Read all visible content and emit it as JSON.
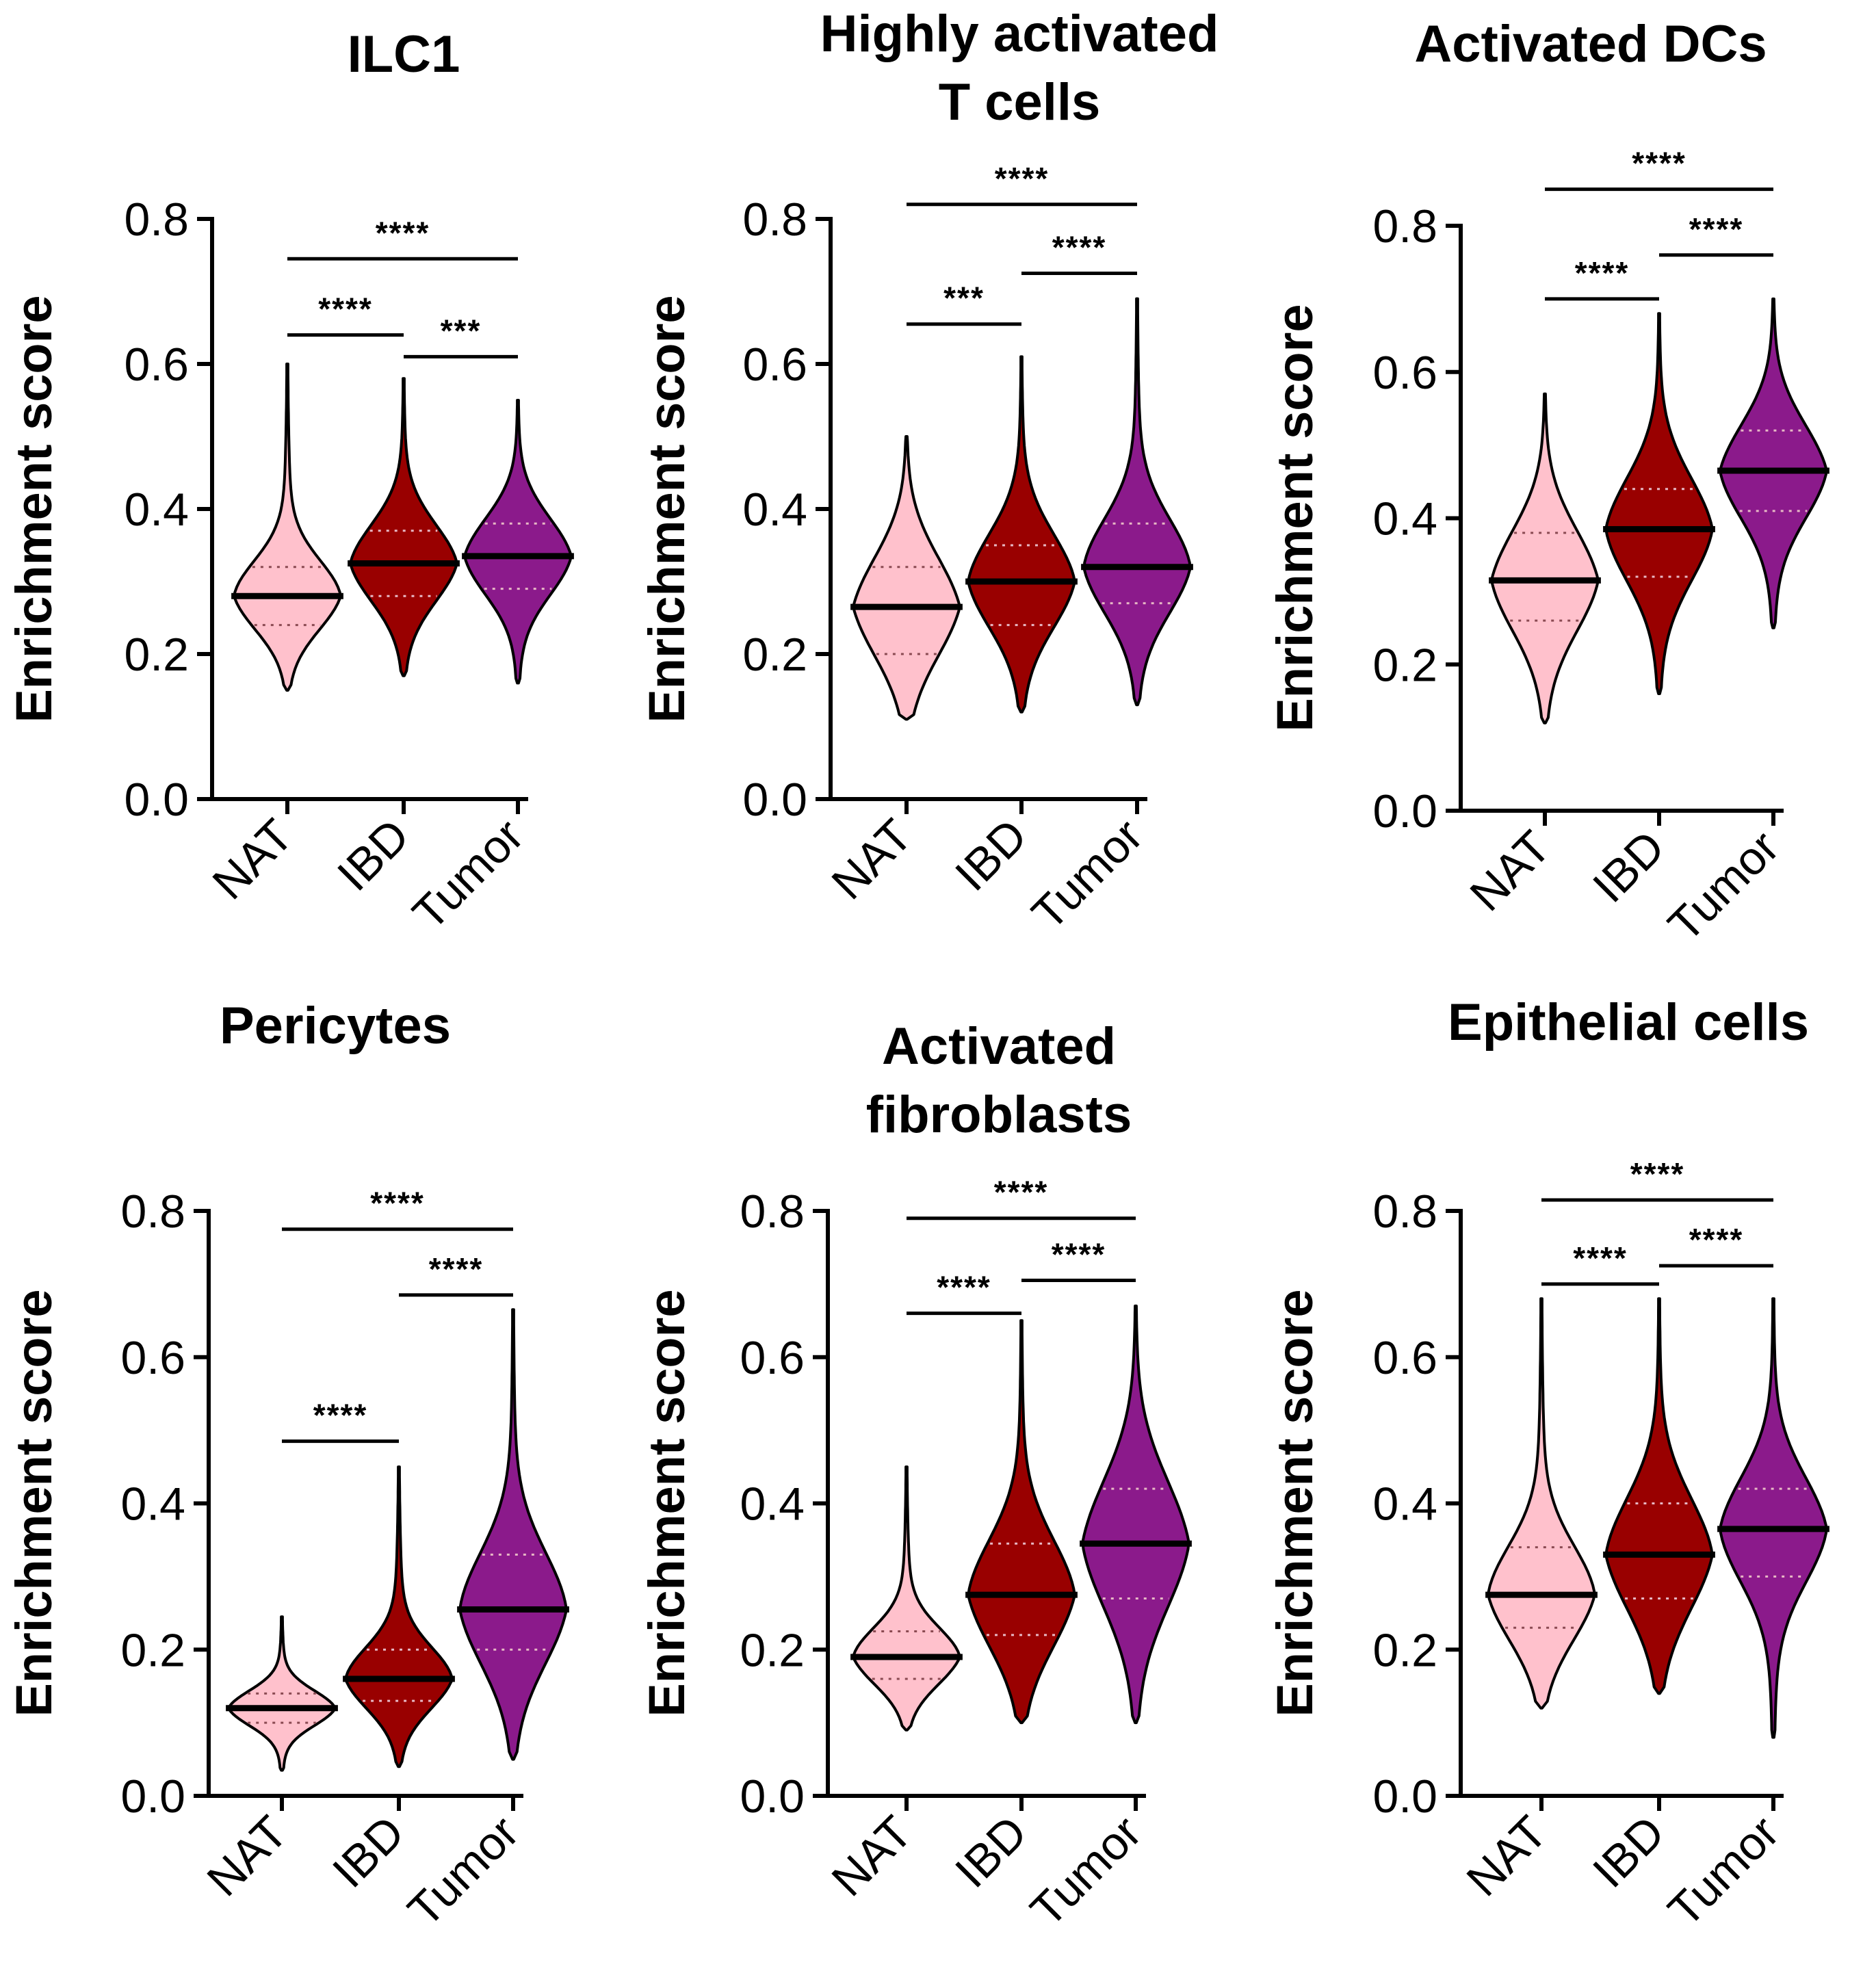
{
  "colors": {
    "NAT": "#ffc1cc",
    "IBD": "#990000",
    "Tumor": "#8b1a8b"
  },
  "chart_data": [
    {
      "type": "violin",
      "title": [
        "ILC1"
      ],
      "ylabel": "Enrichment score",
      "categories": [
        "NAT",
        "IBD",
        "Tumor"
      ],
      "ylim": [
        0,
        0.8
      ],
      "yticks": [
        "0.0",
        "0.2",
        "0.4",
        "0.6",
        "0.8"
      ],
      "series": [
        {
          "name": "NAT",
          "min": 0.15,
          "q1": 0.24,
          "median": 0.28,
          "q3": 0.32,
          "max": 0.6
        },
        {
          "name": "IBD",
          "min": 0.17,
          "q1": 0.28,
          "median": 0.325,
          "q3": 0.37,
          "max": 0.58
        },
        {
          "name": "Tumor",
          "min": 0.16,
          "q1": 0.29,
          "median": 0.335,
          "q3": 0.38,
          "max": 0.55
        }
      ],
      "comparisons": [
        {
          "from": "NAT",
          "to": "Tumor",
          "label": "****",
          "y": 0.745
        },
        {
          "from": "NAT",
          "to": "IBD",
          "label": "****",
          "y": 0.64
        },
        {
          "from": "IBD",
          "to": "Tumor",
          "label": "***",
          "y": 0.61
        }
      ]
    },
    {
      "type": "violin",
      "title": [
        "Highly activated",
        "T cells"
      ],
      "ylabel": "Enrichment score",
      "categories": [
        "NAT",
        "IBD",
        "Tumor"
      ],
      "ylim": [
        0,
        0.8
      ],
      "yticks": [
        "0.0",
        "0.2",
        "0.4",
        "0.6",
        "0.8"
      ],
      "series": [
        {
          "name": "NAT",
          "min": 0.11,
          "q1": 0.2,
          "median": 0.265,
          "q3": 0.32,
          "max": 0.5
        },
        {
          "name": "IBD",
          "min": 0.12,
          "q1": 0.24,
          "median": 0.3,
          "q3": 0.35,
          "max": 0.61
        },
        {
          "name": "Tumor",
          "min": 0.13,
          "q1": 0.27,
          "median": 0.32,
          "q3": 0.38,
          "max": 0.69
        }
      ],
      "comparisons": [
        {
          "from": "NAT",
          "to": "Tumor",
          "label": "****",
          "y": 0.82
        },
        {
          "from": "IBD",
          "to": "Tumor",
          "label": "****",
          "y": 0.725
        },
        {
          "from": "NAT",
          "to": "IBD",
          "label": "***",
          "y": 0.655
        }
      ]
    },
    {
      "type": "violin",
      "title": [
        "Activated DCs"
      ],
      "ylabel": "Enrichment score",
      "categories": [
        "NAT",
        "IBD",
        "Tumor"
      ],
      "ylim": [
        0,
        0.8
      ],
      "yticks": [
        "0.0",
        "0.2",
        "0.4",
        "0.6",
        "0.8"
      ],
      "series": [
        {
          "name": "NAT",
          "min": 0.12,
          "q1": 0.26,
          "median": 0.315,
          "q3": 0.38,
          "max": 0.57
        },
        {
          "name": "IBD",
          "min": 0.16,
          "q1": 0.32,
          "median": 0.385,
          "q3": 0.44,
          "max": 0.68
        },
        {
          "name": "Tumor",
          "min": 0.25,
          "q1": 0.41,
          "median": 0.465,
          "q3": 0.52,
          "max": 0.7
        }
      ],
      "comparisons": [
        {
          "from": "NAT",
          "to": "Tumor",
          "label": "****",
          "y": 0.85
        },
        {
          "from": "IBD",
          "to": "Tumor",
          "label": "****",
          "y": 0.76
        },
        {
          "from": "NAT",
          "to": "IBD",
          "label": "****",
          "y": 0.7
        }
      ]
    },
    {
      "type": "violin",
      "title": [
        "Pericytes"
      ],
      "ylabel": "Enrichment score",
      "categories": [
        "NAT",
        "IBD",
        "Tumor"
      ],
      "ylim": [
        0,
        0.8
      ],
      "yticks": [
        "0.0",
        "0.2",
        "0.4",
        "0.6",
        "0.8"
      ],
      "series": [
        {
          "name": "NAT",
          "min": 0.035,
          "q1": 0.1,
          "median": 0.12,
          "q3": 0.14,
          "max": 0.245
        },
        {
          "name": "IBD",
          "min": 0.04,
          "q1": 0.13,
          "median": 0.16,
          "q3": 0.2,
          "max": 0.45
        },
        {
          "name": "Tumor",
          "min": 0.05,
          "q1": 0.2,
          "median": 0.255,
          "q3": 0.33,
          "max": 0.665
        }
      ],
      "comparisons": [
        {
          "from": "NAT",
          "to": "Tumor",
          "label": "****",
          "y": 0.775
        },
        {
          "from": "IBD",
          "to": "Tumor",
          "label": "****",
          "y": 0.685
        },
        {
          "from": "NAT",
          "to": "IBD",
          "label": "****",
          "y": 0.485
        }
      ]
    },
    {
      "type": "violin",
      "title": [
        "Activated",
        "fibroblasts"
      ],
      "ylabel": "Enrichment score",
      "categories": [
        "NAT",
        "IBD",
        "Tumor"
      ],
      "ylim": [
        0,
        0.8
      ],
      "yticks": [
        "0.0",
        "0.2",
        "0.4",
        "0.6",
        "0.8"
      ],
      "series": [
        {
          "name": "NAT",
          "min": 0.09,
          "q1": 0.16,
          "median": 0.19,
          "q3": 0.225,
          "max": 0.45
        },
        {
          "name": "IBD",
          "min": 0.1,
          "q1": 0.22,
          "median": 0.275,
          "q3": 0.345,
          "max": 0.65
        },
        {
          "name": "Tumor",
          "min": 0.1,
          "q1": 0.27,
          "median": 0.345,
          "q3": 0.42,
          "max": 0.67
        }
      ],
      "comparisons": [
        {
          "from": "NAT",
          "to": "Tumor",
          "label": "****",
          "y": 0.79
        },
        {
          "from": "IBD",
          "to": "Tumor",
          "label": "****",
          "y": 0.705
        },
        {
          "from": "NAT",
          "to": "IBD",
          "label": "****",
          "y": 0.66
        }
      ]
    },
    {
      "type": "violin",
      "title": [
        "Epithelial cells"
      ],
      "ylabel": "Enrichment score",
      "categories": [
        "NAT",
        "IBD",
        "Tumor"
      ],
      "ylim": [
        0,
        0.8
      ],
      "yticks": [
        "0.0",
        "0.2",
        "0.4",
        "0.6",
        "0.8"
      ],
      "series": [
        {
          "name": "NAT",
          "min": 0.12,
          "q1": 0.23,
          "median": 0.275,
          "q3": 0.34,
          "max": 0.68
        },
        {
          "name": "IBD",
          "min": 0.14,
          "q1": 0.27,
          "median": 0.33,
          "q3": 0.4,
          "max": 0.68
        },
        {
          "name": "Tumor",
          "min": 0.08,
          "q1": 0.3,
          "median": 0.365,
          "q3": 0.42,
          "max": 0.68
        }
      ],
      "comparisons": [
        {
          "from": "NAT",
          "to": "Tumor",
          "label": "****",
          "y": 0.815
        },
        {
          "from": "IBD",
          "to": "Tumor",
          "label": "****",
          "y": 0.725
        },
        {
          "from": "NAT",
          "to": "IBD",
          "label": "****",
          "y": 0.7
        }
      ]
    }
  ]
}
